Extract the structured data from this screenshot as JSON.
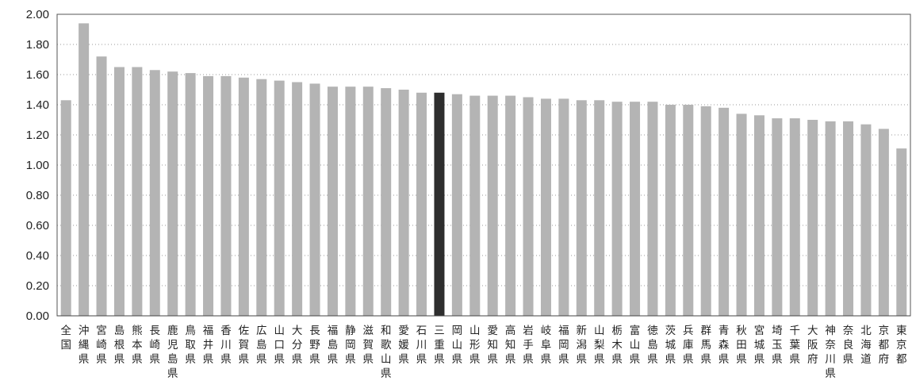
{
  "chart_data": {
    "type": "bar",
    "categories": [
      "全国",
      "沖縄県",
      "宮崎県",
      "島根県",
      "熊本県",
      "長崎県",
      "鹿児島県",
      "鳥取県",
      "福井県",
      "香川県",
      "佐賀県",
      "広島県",
      "山口県",
      "大分県",
      "長野県",
      "福島県",
      "静岡県",
      "滋賀県",
      "和歌山県",
      "愛媛県",
      "石川県",
      "三重県",
      "岡山県",
      "山形県",
      "愛知県",
      "高知県",
      "岩手県",
      "岐阜県",
      "福岡県",
      "新潟県",
      "山梨県",
      "栃木県",
      "富山県",
      "徳島県",
      "茨城県",
      "兵庫県",
      "群馬県",
      "青森県",
      "秋田県",
      "宮城県",
      "埼玉県",
      "千葉県",
      "大阪府",
      "神奈川県",
      "奈良県",
      "北海道",
      "京都府",
      "東京都"
    ],
    "values": [
      1.43,
      1.94,
      1.72,
      1.65,
      1.65,
      1.63,
      1.62,
      1.61,
      1.59,
      1.59,
      1.58,
      1.57,
      1.56,
      1.55,
      1.54,
      1.52,
      1.52,
      1.52,
      1.51,
      1.5,
      1.48,
      1.48,
      1.47,
      1.46,
      1.46,
      1.46,
      1.45,
      1.44,
      1.44,
      1.43,
      1.43,
      1.42,
      1.42,
      1.42,
      1.4,
      1.4,
      1.39,
      1.38,
      1.34,
      1.33,
      1.31,
      1.31,
      1.3,
      1.29,
      1.29,
      1.27,
      1.24,
      1.11
    ],
    "highlight_category": "三重県",
    "ylim": [
      0,
      2.0
    ],
    "y_ticks": [
      "0.00",
      "0.20",
      "0.40",
      "0.60",
      "0.80",
      "1.00",
      "1.20",
      "1.40",
      "1.60",
      "1.80",
      "2.00"
    ],
    "grid": true,
    "colors": {
      "bar": "#b4b4b4",
      "highlight": "#2e2e2e"
    }
  }
}
